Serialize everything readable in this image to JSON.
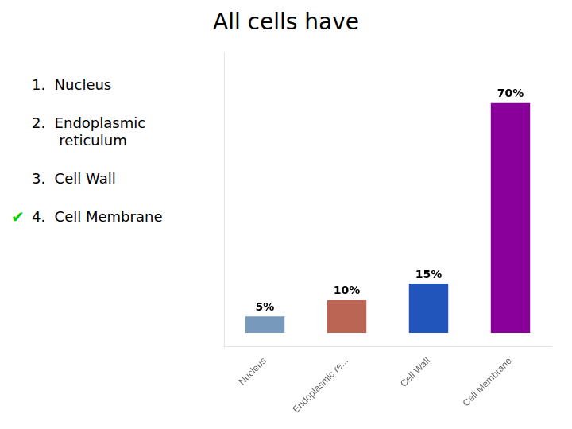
{
  "chart_data": {
    "type": "bar",
    "title": "All cells have",
    "annotations": [
      {
        "text": "1.  Nucleus"
      },
      {
        "text": "2.  Endoplasmic\n      reticulum"
      },
      {
        "text": "3.  Cell Wall"
      },
      {
        "text": "✔",
        "color": "#00CC00"
      },
      {
        "text": "4.  Cell Membrane"
      }
    ],
    "categories": [
      "Nucleus",
      "Endoplasmic re...",
      "Cell Wall",
      "Cell Membrane"
    ],
    "values": [
      5,
      10,
      15,
      70
    ],
    "value_labels": [
      "5%",
      "10%",
      "15%",
      "70%"
    ],
    "data_labels": true,
    "colors": [
      "#7799BB",
      "#BB6655",
      "#2255BB",
      "#880099"
    ],
    "ylim": [
      -4.2,
      85.4
    ],
    "yticks": [],
    "tick_labels": "x",
    "grid": false
  }
}
